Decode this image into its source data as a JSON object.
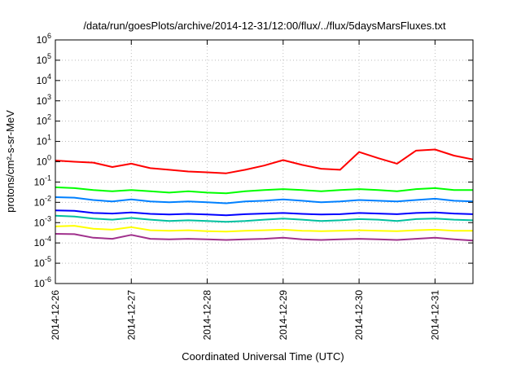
{
  "chart_data": {
    "type": "line",
    "title": "/data/run/goesPlots/archive/2014-12-31/12:00/flux/../flux/5daysMarsFluxes.txt",
    "xlabel": "Coordinated Universal Time (UTC)",
    "ylabel": "protons/cm²-s-sr-MeV",
    "y_scale": "log",
    "ylim": [
      1e-06,
      1000000.0
    ],
    "y_tick_labels": [
      "10-6",
      "10-5",
      "10-4",
      "10-3",
      "10-2",
      "10-1",
      "100",
      "101",
      "102",
      "103",
      "104",
      "105",
      "106"
    ],
    "xlim": [
      "2014-12-26T00:00",
      "2014-12-31T12:00"
    ],
    "x_tick_labels": [
      "2014-12-26",
      "2014-12-27",
      "2014-12-28",
      "2014-12-29",
      "2014-12-30",
      "2014-12-31"
    ],
    "grid": true,
    "x": [
      "2014-12-26T00:00",
      "2014-12-26T06:00",
      "2014-12-26T12:00",
      "2014-12-26T18:00",
      "2014-12-27T00:00",
      "2014-12-27T06:00",
      "2014-12-27T12:00",
      "2014-12-27T18:00",
      "2014-12-28T00:00",
      "2014-12-28T06:00",
      "2014-12-28T12:00",
      "2014-12-28T18:00",
      "2014-12-29T00:00",
      "2014-12-29T06:00",
      "2014-12-29T12:00",
      "2014-12-29T18:00",
      "2014-12-30T00:00",
      "2014-12-30T06:00",
      "2014-12-30T12:00",
      "2014-12-30T18:00",
      "2014-12-31T00:00",
      "2014-12-31T06:00",
      "2014-12-31T12:00"
    ],
    "series": [
      {
        "color": "#ff0000",
        "values": [
          1.15,
          1.0,
          0.9,
          0.55,
          0.8,
          0.48,
          0.4,
          0.33,
          0.3,
          0.27,
          0.4,
          0.65,
          1.2,
          0.7,
          0.45,
          0.4,
          3.0,
          1.5,
          0.8,
          3.5,
          4.0,
          2.0,
          1.3
        ]
      },
      {
        "color": "#00ff00",
        "values": [
          0.055,
          0.05,
          0.04,
          0.035,
          0.04,
          0.035,
          0.03,
          0.035,
          0.03,
          0.028,
          0.035,
          0.04,
          0.045,
          0.04,
          0.035,
          0.04,
          0.045,
          0.04,
          0.035,
          0.045,
          0.05,
          0.04,
          0.04
        ]
      },
      {
        "color": "#0080ff",
        "values": [
          0.018,
          0.017,
          0.013,
          0.011,
          0.014,
          0.011,
          0.01,
          0.011,
          0.01,
          0.009,
          0.011,
          0.012,
          0.014,
          0.012,
          0.01,
          0.011,
          0.013,
          0.012,
          0.011,
          0.013,
          0.015,
          0.012,
          0.011
        ]
      },
      {
        "color": "#0000ff",
        "values": [
          0.004,
          0.0038,
          0.003,
          0.0028,
          0.0032,
          0.0027,
          0.0025,
          0.0027,
          0.0025,
          0.0023,
          0.0026,
          0.0028,
          0.003,
          0.0027,
          0.0025,
          0.0026,
          0.003,
          0.0028,
          0.0026,
          0.003,
          0.0032,
          0.0028,
          0.0026
        ]
      },
      {
        "color": "#00c0a0",
        "values": [
          0.0022,
          0.002,
          0.0016,
          0.0014,
          0.0017,
          0.0014,
          0.0012,
          0.0013,
          0.0012,
          0.0011,
          0.0012,
          0.0014,
          0.0016,
          0.0014,
          0.0012,
          0.0013,
          0.0015,
          0.0014,
          0.0012,
          0.0015,
          0.0016,
          0.0014,
          0.0013
        ]
      },
      {
        "color": "#ffff00",
        "values": [
          0.00065,
          0.0007,
          0.0005,
          0.00045,
          0.0006,
          0.00042,
          0.0004,
          0.00042,
          0.00038,
          0.00036,
          0.0004,
          0.00042,
          0.00045,
          0.0004,
          0.00038,
          0.0004,
          0.00042,
          0.0004,
          0.00038,
          0.00042,
          0.00045,
          0.0004,
          0.0004
        ]
      },
      {
        "color": "#a0308c",
        "values": [
          0.00028,
          0.00027,
          0.00018,
          0.00016,
          0.00025,
          0.00016,
          0.00015,
          0.00016,
          0.00015,
          0.00014,
          0.00015,
          0.00016,
          0.00018,
          0.00015,
          0.00014,
          0.00015,
          0.00016,
          0.00015,
          0.00014,
          0.00016,
          0.00018,
          0.00015,
          0.00013
        ]
      }
    ]
  }
}
